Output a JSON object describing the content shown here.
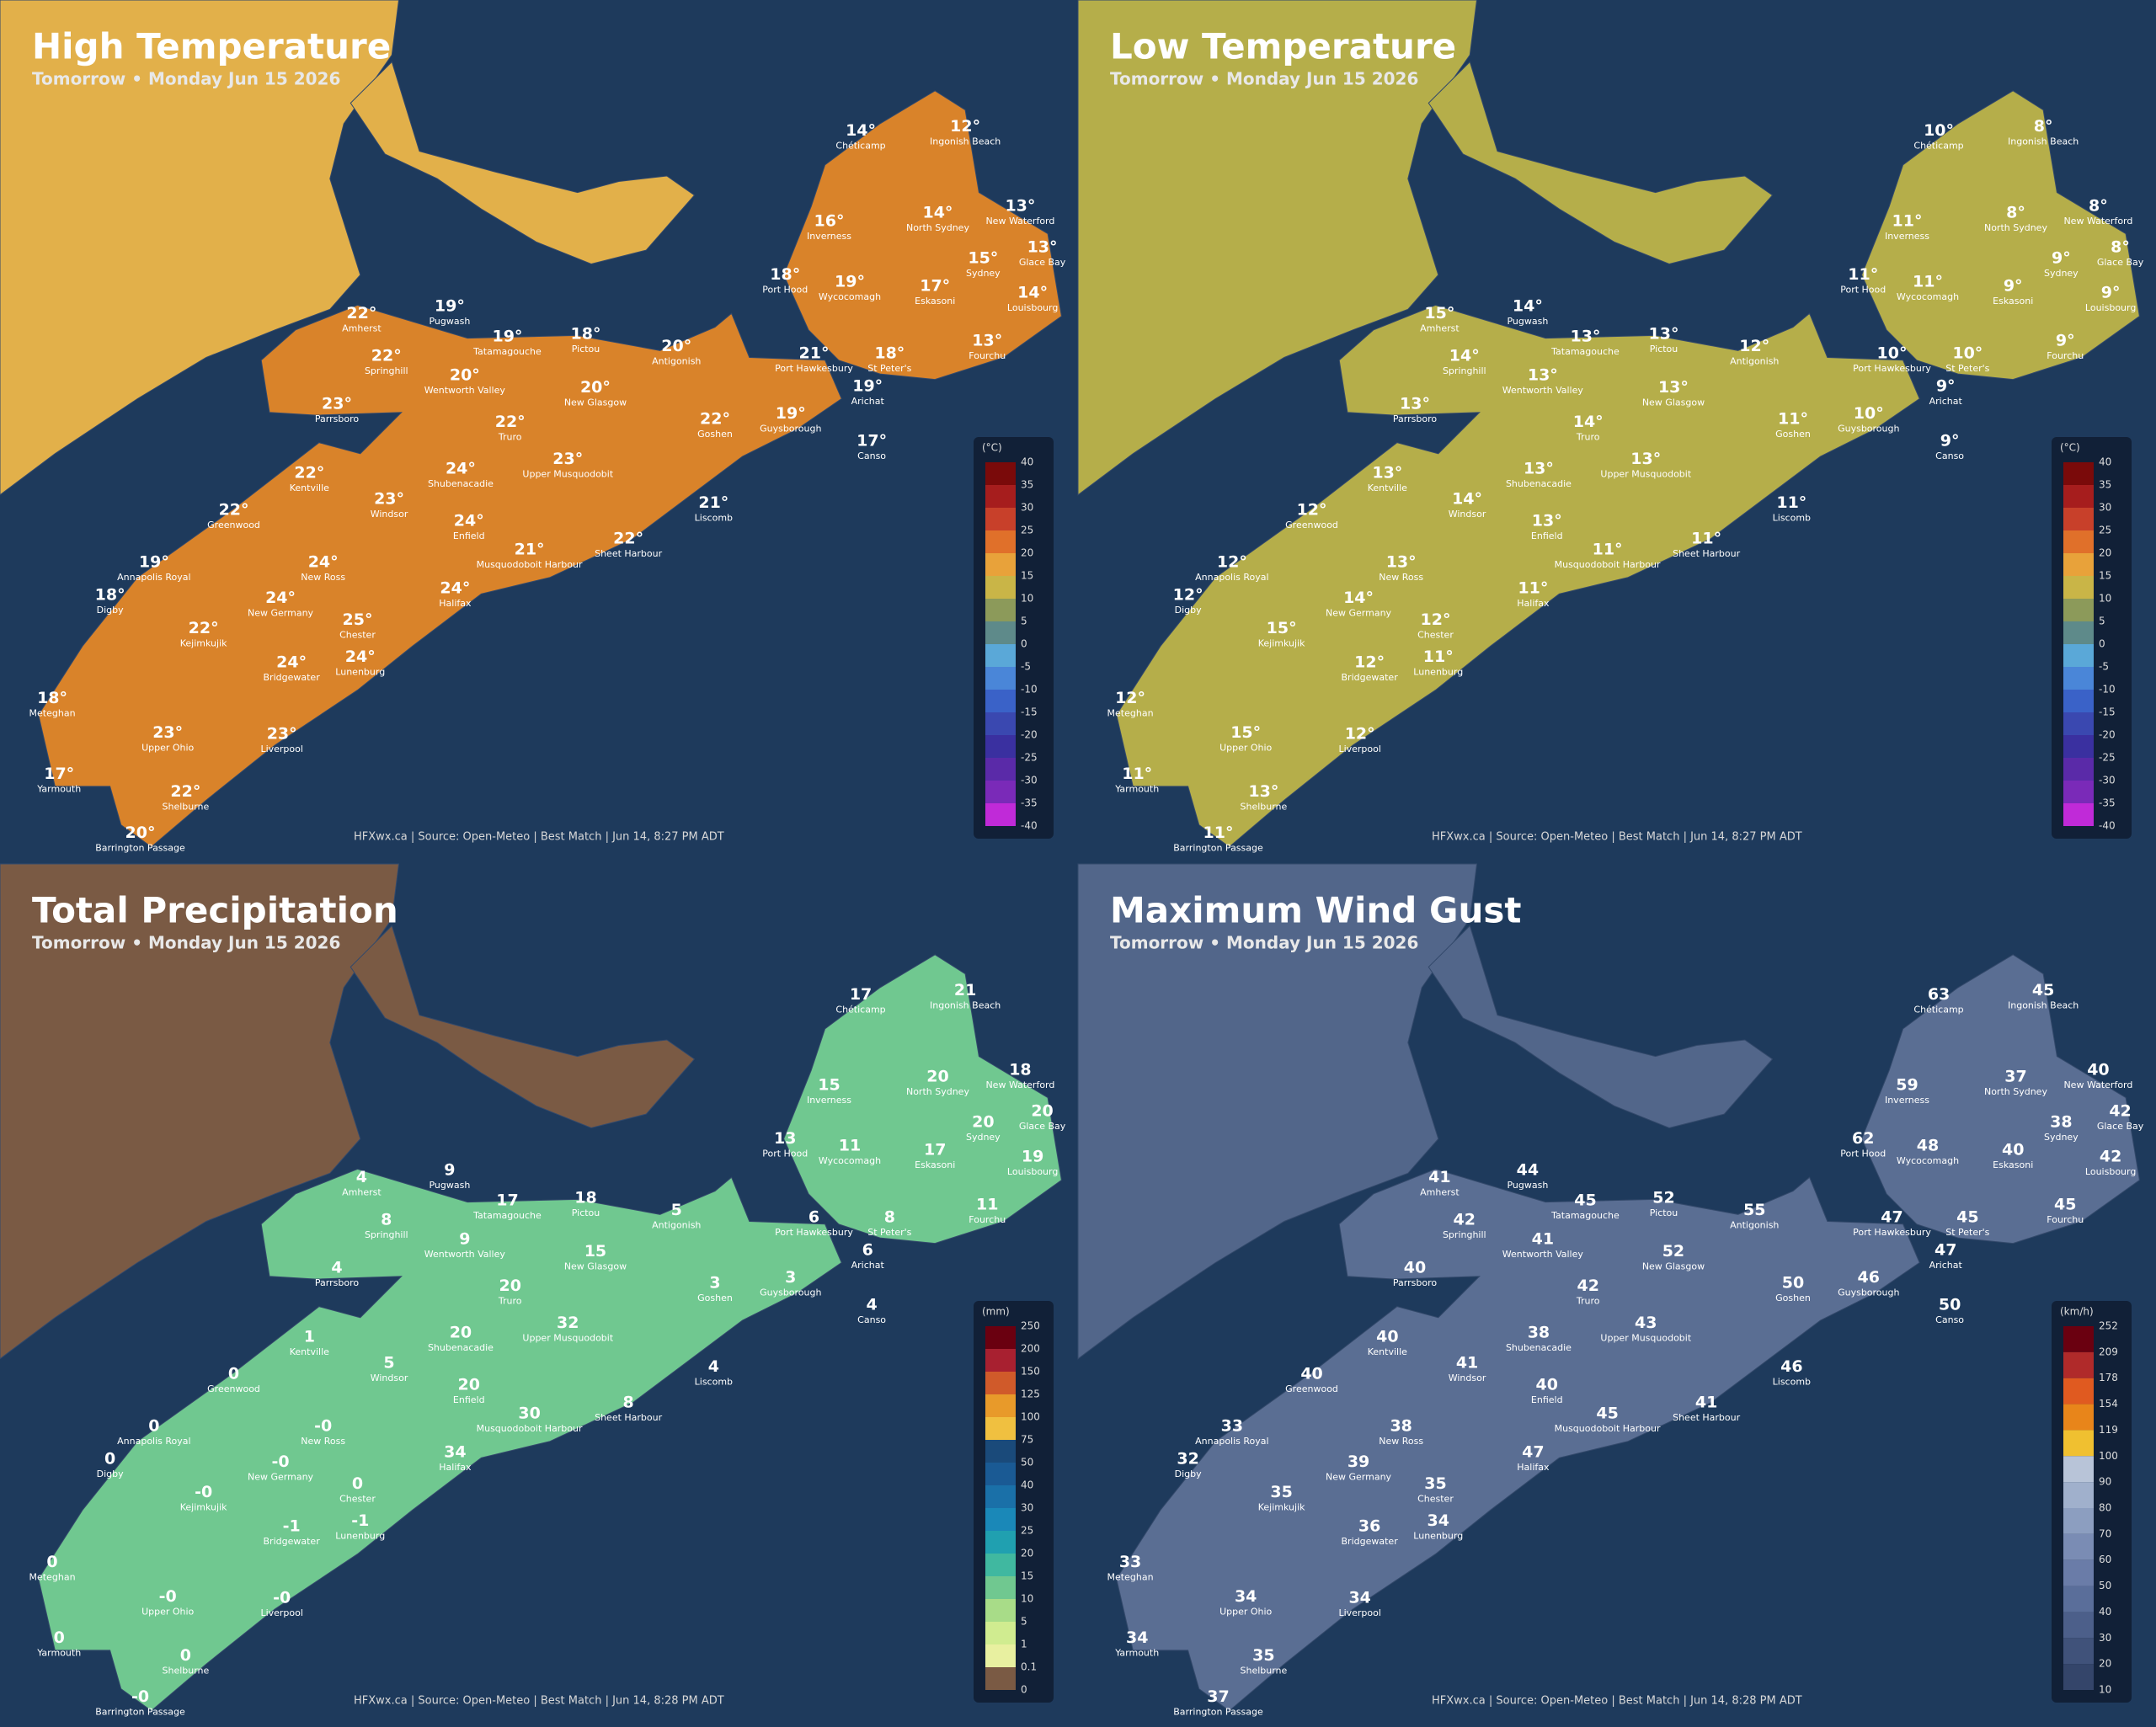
{
  "places": [
    "Chéticamp",
    "Ingonish Beach",
    "Inverness",
    "North Sydney",
    "New Waterford",
    "Glace Bay",
    "Sydney",
    "Port Hood",
    "Wycocomagh",
    "Eskasoni",
    "Louisbourg",
    "Fourchu",
    "Amherst",
    "Pugwash",
    "Tatamagouche",
    "Pictou",
    "Antigonish",
    "Springhill",
    "Wentworth Valley",
    "New Glasgow",
    "Port Hawkesbury",
    "St Peter's",
    "Arichat",
    "Parrsboro",
    "Truro",
    "Goshen",
    "Guysborough",
    "Canso",
    "Kentville",
    "Shubenacadie",
    "Upper Musquodobit",
    "Windsor",
    "Liscomb",
    "Greenwood",
    "Enfield",
    "Musquodoboit Harbour",
    "Sheet Harbour",
    "New Ross",
    "Annapolis Royal",
    "Halifax",
    "Digby",
    "New Germany",
    "Chester",
    "Kejimkujik",
    "Bridgewater",
    "Lunenburg",
    "Meteghan",
    "Upper Ohio",
    "Liverpool",
    "Yarmouth",
    "Shelburne",
    "Barrington Passage"
  ],
  "panels": [
    {
      "title": "High Temperature",
      "subtitle": "Tomorrow • Monday Jun 15 2026",
      "land_color": "#d9832a",
      "other_land_color": "#e2b04a",
      "values": [
        14,
        12,
        16,
        14,
        13,
        13,
        15,
        18,
        19,
        17,
        14,
        13,
        22,
        19,
        19,
        18,
        20,
        22,
        20,
        20,
        21,
        18,
        19,
        23,
        22,
        22,
        19,
        17,
        22,
        24,
        23,
        23,
        21,
        22,
        24,
        21,
        22,
        24,
        19,
        24,
        18,
        24,
        25,
        22,
        24,
        24,
        18,
        23,
        23,
        17,
        22,
        20
      ],
      "value_labels": [
        "14°",
        "12°",
        "16°",
        "14°",
        "13°",
        "13°",
        "15°",
        "18°",
        "19°",
        "17°",
        "14°",
        "13°",
        "22°",
        "19°",
        "19°",
        "18°",
        "20°",
        "22°",
        "20°",
        "20°",
        "21°",
        "18°",
        "19°",
        "23°",
        "22°",
        "22°",
        "19°",
        "17°",
        "22°",
        "24°",
        "23°",
        "23°",
        "21°",
        "22°",
        "24°",
        "21°",
        "22°",
        "24°",
        "19°",
        "24°",
        "18°",
        "24°",
        "25°",
        "22°",
        "24°",
        "24°",
        "18°",
        "23°",
        "23°",
        "17°",
        "22°",
        "20°"
      ],
      "legend": {
        "unit": "(°C)",
        "ticks": [
          40,
          35,
          30,
          25,
          20,
          15,
          10,
          5,
          0,
          -5,
          -10,
          -15,
          -20,
          -25,
          -30,
          -35,
          -40
        ],
        "colors": [
          "#7a0a0a",
          "#a61d1d",
          "#c8402a",
          "#e0702a",
          "#e8a23a",
          "#c9b547",
          "#8c9a5a",
          "#5e8a8a",
          "#5aa8d8",
          "#4a86d8",
          "#3a62c8",
          "#3a48b0",
          "#3a30a0",
          "#5a2aa8",
          "#7a2ab8",
          "#c02ad8"
        ]
      },
      "source": "HFXwx.ca | Source: Open-Meteo | Best Match | Jun 14, 8:27 PM ADT"
    },
    {
      "title": "Low Temperature",
      "subtitle": "Tomorrow • Monday Jun 15 2026",
      "land_color": "#b5ae4a",
      "other_land_color": "#b5ae4a",
      "values": [
        10,
        8,
        11,
        8,
        8,
        8,
        9,
        11,
        11,
        9,
        9,
        9,
        15,
        14,
        13,
        13,
        12,
        14,
        13,
        13,
        10,
        10,
        9,
        13,
        14,
        11,
        10,
        9,
        13,
        13,
        13,
        14,
        11,
        12,
        13,
        11,
        11,
        13,
        12,
        11,
        12,
        14,
        12,
        15,
        12,
        11,
        12,
        15,
        12,
        11,
        13,
        11
      ],
      "value_labels": [
        "10°",
        "8°",
        "11°",
        "8°",
        "8°",
        "8°",
        "9°",
        "11°",
        "11°",
        "9°",
        "9°",
        "9°",
        "15°",
        "14°",
        "13°",
        "13°",
        "12°",
        "14°",
        "13°",
        "13°",
        "10°",
        "10°",
        "9°",
        "13°",
        "14°",
        "11°",
        "10°",
        "9°",
        "13°",
        "13°",
        "13°",
        "14°",
        "11°",
        "12°",
        "13°",
        "11°",
        "11°",
        "13°",
        "12°",
        "11°",
        "12°",
        "14°",
        "12°",
        "15°",
        "12°",
        "11°",
        "12°",
        "15°",
        "12°",
        "11°",
        "13°",
        "11°"
      ],
      "legend": {
        "unit": "(°C)",
        "ticks": [
          40,
          35,
          30,
          25,
          20,
          15,
          10,
          5,
          0,
          -5,
          -10,
          -15,
          -20,
          -25,
          -30,
          -35,
          -40
        ],
        "colors": [
          "#7a0a0a",
          "#a61d1d",
          "#c8402a",
          "#e0702a",
          "#e8a23a",
          "#c9b547",
          "#8c9a5a",
          "#5e8a8a",
          "#5aa8d8",
          "#4a86d8",
          "#3a62c8",
          "#3a48b0",
          "#3a30a0",
          "#5a2aa8",
          "#7a2ab8",
          "#c02ad8"
        ]
      },
      "source": "HFXwx.ca | Source: Open-Meteo | Best Match | Jun 14, 8:27 PM ADT"
    },
    {
      "title": "Total Precipitation",
      "subtitle": "Tomorrow • Monday Jun 15 2026",
      "land_color": "#70c890",
      "other_land_color": "#7a5a44",
      "values": [
        17,
        21,
        15,
        20,
        18,
        20,
        20,
        13,
        11,
        17,
        19,
        11,
        4,
        9,
        17,
        18,
        5,
        8,
        9,
        15,
        6,
        8,
        6,
        4,
        20,
        3,
        3,
        4,
        1,
        20,
        32,
        5,
        4,
        0,
        20,
        30,
        8,
        0,
        0,
        34,
        0,
        0,
        0,
        0,
        -1,
        -1,
        0,
        0,
        0,
        0,
        0,
        0
      ],
      "value_labels": [
        "17",
        "21",
        "15",
        "20",
        "18",
        "20",
        "20",
        "13",
        "11",
        "17",
        "19",
        "11",
        "4",
        "9",
        "17",
        "18",
        "5",
        "8",
        "9",
        "15",
        "6",
        "8",
        "6",
        "4",
        "20",
        "3",
        "3",
        "4",
        "1",
        "20",
        "32",
        "5",
        "4",
        "0",
        "20",
        "30",
        "8",
        "-0",
        "0",
        "34",
        "0",
        "-0",
        "0",
        "-0",
        "-1",
        "-1",
        "0",
        "-0",
        "-0",
        "0",
        "0",
        "-0"
      ],
      "legend": {
        "unit": "(mm)",
        "ticks": [
          250,
          200,
          150,
          125,
          100,
          75,
          50,
          40,
          30,
          25,
          20,
          15,
          10,
          5,
          1,
          0.1,
          0
        ],
        "colors": [
          "#6a0010",
          "#a82030",
          "#d05a2a",
          "#e89a2a",
          "#f0c040",
          "#1a4a7a",
          "#1a5a94",
          "#1a70a8",
          "#1a88b8",
          "#20a0b0",
          "#40b8a0",
          "#70c890",
          "#a8dc88",
          "#d0ec90",
          "#e8f0a0",
          "#7a5a44"
        ]
      },
      "source": "HFXwx.ca | Source: Open-Meteo | Best Match | Jun 14, 8:28 PM ADT"
    },
    {
      "title": "Maximum Wind Gust",
      "subtitle": "Tomorrow • Monday Jun 15 2026",
      "land_color": "#5a6e93",
      "other_land_color": "#52668a",
      "values": [
        63,
        45,
        59,
        37,
        40,
        42,
        38,
        62,
        48,
        40,
        42,
        45,
        41,
        44,
        45,
        52,
        55,
        42,
        41,
        52,
        47,
        45,
        47,
        40,
        42,
        50,
        46,
        50,
        40,
        38,
        43,
        41,
        46,
        40,
        40,
        45,
        41,
        38,
        33,
        47,
        32,
        39,
        35,
        35,
        36,
        34,
        33,
        34,
        34,
        34,
        35,
        37
      ],
      "legend": {
        "unit": "(km/h)",
        "ticks": [
          252,
          209,
          178,
          154,
          119,
          100,
          90,
          80,
          70,
          60,
          50,
          40,
          30,
          20,
          10
        ],
        "colors": [
          "#6a0010",
          "#b02a2a",
          "#e05a20",
          "#e8851a",
          "#f0c030",
          "#b8c4d8",
          "#a0b0cc",
          "#8c9ec0",
          "#7a8cb4",
          "#6a7ca8",
          "#5a6e9a",
          "#4c5f8a",
          "#40527a",
          "#34456a"
        ]
      },
      "source": "HFXwx.ca | Source: Open-Meteo | Best Match | Jun 14, 8:28 PM ADT"
    }
  ]
}
